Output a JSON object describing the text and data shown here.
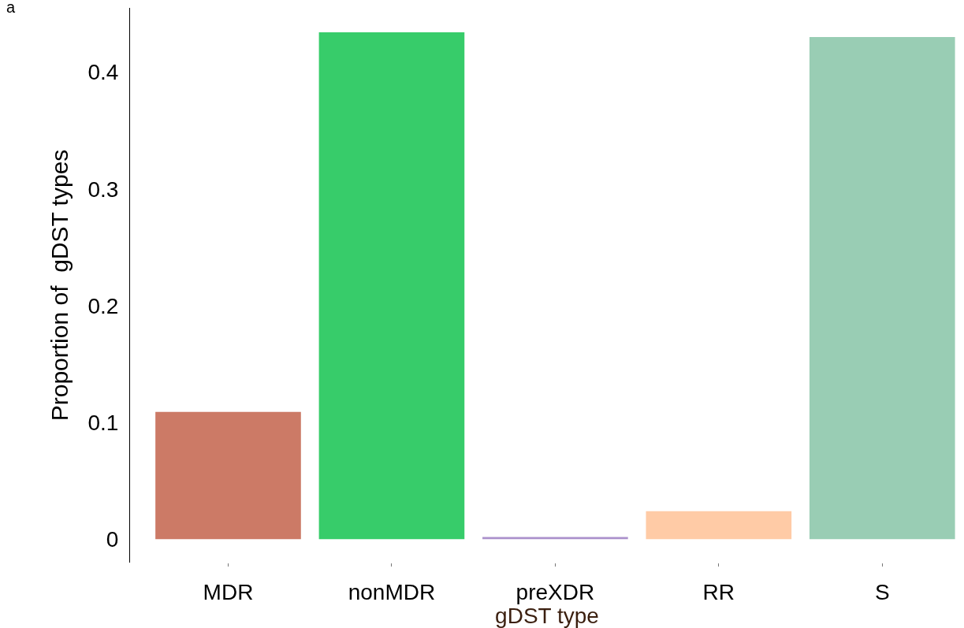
{
  "chart_data": {
    "type": "bar",
    "categories": [
      "MDR",
      "nonMDR",
      "preXDR",
      "RR",
      "S"
    ],
    "values": [
      0.109,
      0.434,
      0.002,
      0.024,
      0.43
    ],
    "colors": [
      "#cc7a66",
      "#37cc6a",
      "#ab91cc",
      "#ffcba6",
      "#99cdb4"
    ],
    "xlabel": "gDST type",
    "ylabel": "Proportion of  gDST types",
    "ylim": [
      -0.02,
      0.455
    ],
    "yticks": [
      0,
      0.1,
      0.2,
      0.3,
      0.4
    ],
    "annotations": [
      "a"
    ],
    "grid": false,
    "legend": false
  }
}
